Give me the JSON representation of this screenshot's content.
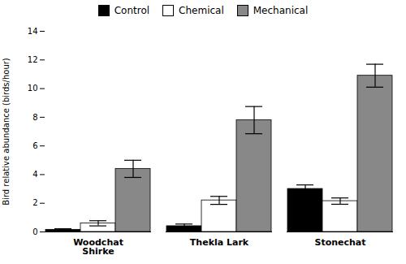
{
  "chart_data": {
    "type": "bar",
    "categories": [
      "Woodchat\nShirke",
      "Thekla Lark",
      "Stonechat"
    ],
    "series": [
      {
        "name": "Control",
        "color": "#000000",
        "values": [
          0.15,
          0.4,
          3.0
        ],
        "errors": [
          0.07,
          0.15,
          0.28
        ]
      },
      {
        "name": "Chemical",
        "color": "#ffffff",
        "values": [
          0.6,
          2.2,
          2.15
        ],
        "errors": [
          0.18,
          0.28,
          0.22
        ]
      },
      {
        "name": "Mechanical",
        "color": "#888888",
        "values": [
          4.4,
          7.8,
          10.9
        ],
        "errors": [
          0.6,
          0.95,
          0.8
        ]
      }
    ],
    "ylabel": "Bird relative abundance (birds/hour)",
    "ylim": [
      0,
      14
    ],
    "yticks": [
      0,
      2,
      4,
      6,
      8,
      10,
      12,
      14
    ],
    "legend": "top"
  }
}
